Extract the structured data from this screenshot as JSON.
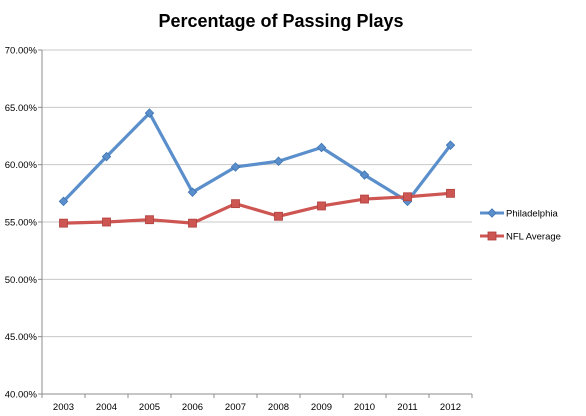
{
  "chart_data": {
    "type": "line",
    "title": "Percentage of Passing Plays",
    "xlabel": "",
    "ylabel": "",
    "categories": [
      "2003",
      "2004",
      "2005",
      "2006",
      "2007",
      "2008",
      "2009",
      "2010",
      "2011",
      "2012"
    ],
    "y_ticks": [
      "40.00%",
      "45.00%",
      "50.00%",
      "55.00%",
      "60.00%",
      "65.00%",
      "70.00%"
    ],
    "ylim": [
      40,
      70
    ],
    "grid": true,
    "legend_position": "right",
    "series": [
      {
        "name": "Philadelphia",
        "color": "#5a8fcb",
        "marker": "diamond",
        "values": [
          56.8,
          60.7,
          64.5,
          57.6,
          59.8,
          60.3,
          61.5,
          59.1,
          56.8,
          61.7
        ]
      },
      {
        "name": "NFL Average",
        "color": "#cd5552",
        "marker": "square",
        "values": [
          54.9,
          55.0,
          55.2,
          54.9,
          56.6,
          55.5,
          56.4,
          57.0,
          57.2,
          57.5
        ]
      }
    ]
  }
}
